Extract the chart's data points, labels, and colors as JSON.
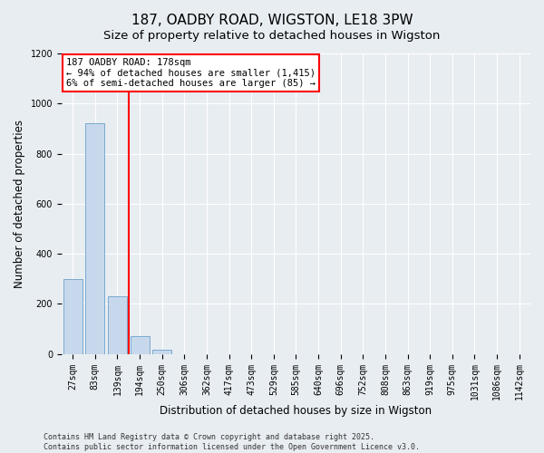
{
  "title1": "187, OADBY ROAD, WIGSTON, LE18 3PW",
  "title2": "Size of property relative to detached houses in Wigston",
  "xlabel": "Distribution of detached houses by size in Wigston",
  "ylabel": "Number of detached properties",
  "categories": [
    "27sqm",
    "83sqm",
    "139sqm",
    "194sqm",
    "250sqm",
    "306sqm",
    "362sqm",
    "417sqm",
    "473sqm",
    "529sqm",
    "585sqm",
    "640sqm",
    "696sqm",
    "752sqm",
    "808sqm",
    "863sqm",
    "919sqm",
    "975sqm",
    "1031sqm",
    "1086sqm",
    "1142sqm"
  ],
  "values": [
    300,
    920,
    230,
    70,
    15,
    0,
    0,
    0,
    0,
    0,
    0,
    0,
    0,
    0,
    0,
    0,
    0,
    0,
    0,
    0,
    0
  ],
  "bar_color": "#c8d8ec",
  "bar_edge_color": "#7aaad0",
  "ylim": [
    0,
    1200
  ],
  "yticks": [
    0,
    200,
    400,
    600,
    800,
    1000,
    1200
  ],
  "annotation_line1": "187 OADBY ROAD: 178sqm",
  "annotation_line2": "← 94% of detached houses are smaller (1,415)",
  "annotation_line3": "6% of semi-detached houses are larger (85) →",
  "vline_pos": 2.52,
  "footer1": "Contains HM Land Registry data © Crown copyright and database right 2025.",
  "footer2": "Contains public sector information licensed under the Open Government Licence v3.0.",
  "background_color": "#e8edf2",
  "grid_color": "#ffffff",
  "title_fontsize": 11,
  "subtitle_fontsize": 9.5,
  "axis_fontsize": 8.5,
  "tick_fontsize": 7,
  "footer_fontsize": 6
}
